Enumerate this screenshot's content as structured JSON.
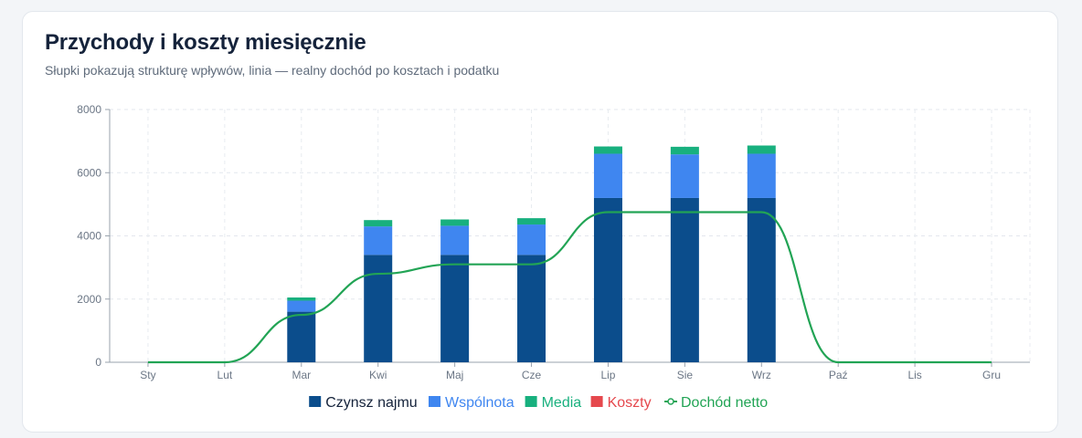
{
  "header": {
    "title": "Przychody i koszty miesięcznie",
    "subtitle": "Słupki pokazują strukturę wpływów, linia — realny dochód po kosztach i podatku"
  },
  "chart_data": {
    "type": "bar",
    "stacked": true,
    "categories": [
      "Sty",
      "Lut",
      "Mar",
      "Kwi",
      "Maj",
      "Cze",
      "Lip",
      "Sie",
      "Wrz",
      "Paź",
      "Lis",
      "Gru"
    ],
    "ylim": [
      0,
      8000
    ],
    "yticks": [
      0,
      2000,
      4000,
      6000,
      8000
    ],
    "grid": true,
    "legend_position": "bottom-center",
    "series": [
      {
        "name": "Czynsz najmu",
        "type": "bar",
        "color": "#0b4d8c",
        "values": [
          0,
          0,
          1600,
          3400,
          3400,
          3400,
          5200,
          5200,
          5200,
          0,
          0,
          0
        ]
      },
      {
        "name": "Wspólnota",
        "type": "bar",
        "color": "#3f86f0",
        "values": [
          0,
          0,
          350,
          900,
          920,
          960,
          1400,
          1380,
          1400,
          0,
          0,
          0
        ]
      },
      {
        "name": "Media",
        "type": "bar",
        "color": "#18b07e",
        "values": [
          0,
          0,
          100,
          200,
          200,
          200,
          230,
          240,
          260,
          0,
          0,
          0
        ]
      },
      {
        "name": "Koszty",
        "type": "bar",
        "color": "#e5484d",
        "values": [
          0,
          0,
          0,
          0,
          0,
          0,
          0,
          0,
          0,
          0,
          0,
          0
        ]
      },
      {
        "name": "Dochód netto",
        "type": "line",
        "color": "#22a455",
        "values": [
          0,
          0,
          1500,
          2800,
          3100,
          3100,
          4750,
          4750,
          4750,
          0,
          0,
          0
        ]
      }
    ]
  }
}
